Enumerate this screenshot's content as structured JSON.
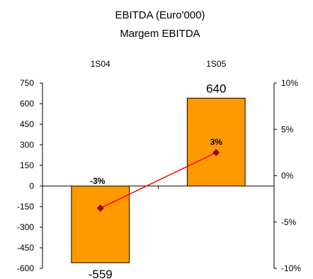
{
  "chart_data": {
    "type": "bar",
    "title": "EBITDA (Euro'000)",
    "subtitle": "Margem EBITDA",
    "categories": [
      "1S04",
      "1S05"
    ],
    "series": [
      {
        "type": "bar",
        "axis": "left",
        "values": [
          -559,
          640
        ],
        "value_labels": [
          "-559",
          "640"
        ],
        "color": "#FF9900"
      },
      {
        "type": "line",
        "axis": "right",
        "values": [
          -3.5,
          2.5
        ],
        "value_labels": [
          "-3%",
          "3%"
        ],
        "color": "#FF0000",
        "marker_color": "#990000"
      }
    ],
    "y_left": {
      "min": -600,
      "max": 750,
      "ticks": [
        "750",
        "600",
        "450",
        "300",
        "150",
        "0",
        "-150",
        "-300",
        "-450",
        "-600"
      ]
    },
    "y_right": {
      "min": -10,
      "max": 10,
      "ticks": [
        "10%",
        "5%",
        "0%",
        "-5%",
        "-10%"
      ]
    },
    "grid": false,
    "legend": "none"
  }
}
